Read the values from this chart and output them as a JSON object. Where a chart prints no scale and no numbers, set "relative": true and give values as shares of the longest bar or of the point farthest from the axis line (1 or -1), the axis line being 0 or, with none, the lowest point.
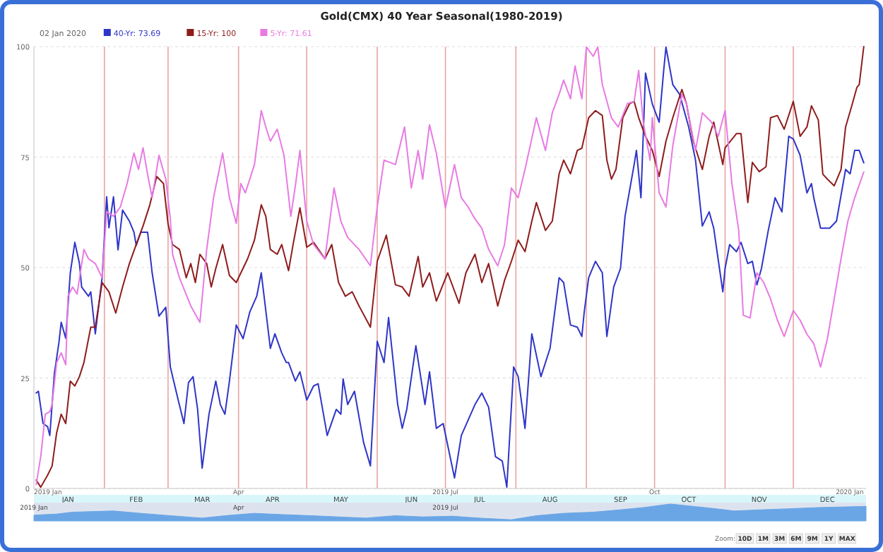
{
  "chart_data": [
    {
      "type": "line",
      "title": "Gold(CMX) 40 Year Seasonal(1980-2019)",
      "legend_title": "02 Jan 2020",
      "legend": "top left",
      "grid": "y",
      "xlim": [
        "2019-01-01",
        "2020-01-02"
      ],
      "xticks": [
        {
          "value": "2019-01-16",
          "label": "JAN"
        },
        {
          "value": "2019-02-15",
          "label": "FEB"
        },
        {
          "value": "2019-03-16",
          "label": "MAR"
        },
        {
          "value": "2019-04-16",
          "label": "APR"
        },
        {
          "value": "2019-05-16",
          "label": "MAY"
        },
        {
          "value": "2019-06-16",
          "label": "JUN"
        },
        {
          "value": "2019-07-16",
          "label": "JUL"
        },
        {
          "value": "2019-08-16",
          "label": "AUG"
        },
        {
          "value": "2019-09-16",
          "label": "SEP"
        },
        {
          "value": "2019-10-16",
          "label": "OCT"
        },
        {
          "value": "2019-11-16",
          "label": "NOV"
        },
        {
          "value": "2019-12-16",
          "label": "DEC"
        }
      ],
      "x2lim": [
        "2019-01-01",
        "2020-01-02"
      ],
      "x2ticks": [
        {
          "value": "2019-01-01",
          "label": "2019 Jan"
        },
        {
          "value": "2019-04-01",
          "label": "Apr"
        },
        {
          "value": "2019-07-01",
          "label": "2019 Jul"
        },
        {
          "value": "2019-10-01",
          "label": "Oct"
        },
        {
          "value": "2020-01-01",
          "label": "2020 Jan"
        }
      ],
      "ylim": [
        0,
        100
      ],
      "yticks": [
        0,
        25,
        50,
        75,
        100
      ],
      "ref_lines": [
        {
          "axis": "x",
          "value": "2019-02-01",
          "color": "#e8a4a4"
        },
        {
          "axis": "x",
          "value": "2019-03-01",
          "color": "#e8a4a4"
        },
        {
          "axis": "x",
          "value": "2019-04-01",
          "color": "#e8a4a4"
        },
        {
          "axis": "x",
          "value": "2019-05-01",
          "color": "#e8a4a4"
        },
        {
          "axis": "x",
          "value": "2019-06-01",
          "color": "#e8a4a4"
        },
        {
          "axis": "x",
          "value": "2019-07-01",
          "color": "#e8a4a4"
        },
        {
          "axis": "x",
          "value": "2019-08-01",
          "color": "#e8a4a4"
        },
        {
          "axis": "x",
          "value": "2019-09-01",
          "color": "#e8a4a4"
        },
        {
          "axis": "x",
          "value": "2019-10-01",
          "color": "#e8a4a4"
        },
        {
          "axis": "x",
          "value": "2019-11-01",
          "color": "#e8a4a4"
        },
        {
          "axis": "x",
          "value": "2019-12-01",
          "color": "#e8a4a4"
        }
      ],
      "series": [
        {
          "name": "40-Yr: 73.69",
          "color": "#2f35c8",
          "x": [
            "2019-01-02",
            "2019-01-03",
            "2019-01-05",
            "2019-01-07",
            "2019-01-08",
            "2019-01-10",
            "2019-01-12",
            "2019-01-13",
            "2019-01-15",
            "2019-01-17",
            "2019-01-19",
            "2019-01-21",
            "2019-01-22",
            "2019-01-25",
            "2019-01-26",
            "2019-01-28",
            "2019-01-31",
            "2019-02-02",
            "2019-02-03",
            "2019-02-05",
            "2019-02-07",
            "2019-02-09",
            "2019-02-12",
            "2019-02-14",
            "2019-02-15",
            "2019-02-17",
            "2019-02-20",
            "2019-02-22",
            "2019-02-25",
            "2019-02-28",
            "2019-03-02",
            "2019-03-05",
            "2019-03-08",
            "2019-03-10",
            "2019-03-12",
            "2019-03-14",
            "2019-03-16",
            "2019-03-19",
            "2019-03-22",
            "2019-03-24",
            "2019-03-26",
            "2019-03-28",
            "2019-03-31",
            "2019-04-03",
            "2019-04-06",
            "2019-04-09",
            "2019-04-11",
            "2019-04-15",
            "2019-04-17",
            "2019-04-20",
            "2019-04-22",
            "2019-04-23",
            "2019-04-26",
            "2019-04-28",
            "2019-05-01",
            "2019-05-04",
            "2019-05-06",
            "2019-05-10",
            "2019-05-14",
            "2019-05-16",
            "2019-05-17",
            "2019-05-19",
            "2019-05-22",
            "2019-05-26",
            "2019-05-29",
            "2019-06-01",
            "2019-06-04",
            "2019-06-06",
            "2019-06-10",
            "2019-06-12",
            "2019-06-14",
            "2019-06-18",
            "2019-06-22",
            "2019-06-24",
            "2019-06-27",
            "2019-06-30",
            "2019-07-05",
            "2019-07-08",
            "2019-07-14",
            "2019-07-17",
            "2019-07-20",
            "2019-07-23",
            "2019-07-26",
            "2019-07-28",
            "2019-07-31",
            "2019-08-02",
            "2019-08-05",
            "2019-08-08",
            "2019-08-12",
            "2019-08-16",
            "2019-08-20",
            "2019-08-22",
            "2019-08-25",
            "2019-08-28",
            "2019-08-30",
            "2019-08-31",
            "2019-09-02",
            "2019-09-05",
            "2019-09-08",
            "2019-09-10",
            "2019-09-13",
            "2019-09-16",
            "2019-09-18",
            "2019-09-22",
            "2019-09-23",
            "2019-09-25",
            "2019-09-27",
            "2019-09-30",
            "2019-10-03",
            "2019-10-05",
            "2019-10-06",
            "2019-10-09",
            "2019-10-12",
            "2019-10-16",
            "2019-10-19",
            "2019-10-22",
            "2019-10-25",
            "2019-10-27",
            "2019-10-31",
            "2019-11-01",
            "2019-11-03",
            "2019-11-06",
            "2019-11-08",
            "2019-11-11",
            "2019-11-13",
            "2019-11-15",
            "2019-11-17",
            "2019-11-20",
            "2019-11-23",
            "2019-11-26",
            "2019-11-29",
            "2019-12-01",
            "2019-12-04",
            "2019-12-07",
            "2019-12-09",
            "2019-12-10",
            "2019-12-13",
            "2019-12-17",
            "2019-12-20",
            "2019-12-24",
            "2019-12-26",
            "2019-12-28",
            "2019-12-30",
            "2020-01-01"
          ],
          "values": [
            21.6,
            22,
            14.7,
            14,
            12,
            26,
            33,
            37.6,
            34,
            48.8,
            55.7,
            51,
            45.6,
            43.5,
            44.5,
            35,
            47.7,
            66,
            59,
            66,
            54,
            63,
            60.5,
            58,
            55,
            58,
            58,
            48.8,
            39,
            41,
            27.5,
            21,
            14.7,
            24,
            25.3,
            17.9,
            4.6,
            16.8,
            24.3,
            19,
            16.8,
            24.3,
            37,
            33.9,
            40,
            43.5,
            48.8,
            31.7,
            35,
            30.7,
            28.5,
            28.5,
            24.3,
            26.4,
            20,
            23.2,
            23.7,
            12,
            17.9,
            16.8,
            24.8,
            19,
            22,
            10.4,
            5.1,
            33.3,
            28.5,
            38.7,
            19,
            13.6,
            17.9,
            32.3,
            19,
            26.4,
            13.6,
            14.7,
            2.4,
            12,
            19,
            21.6,
            18.4,
            7.2,
            6.2,
            0.3,
            27.5,
            25.3,
            13.6,
            35,
            25.3,
            31.7,
            47.7,
            46.6,
            37,
            36.5,
            34.4,
            39.7,
            47.7,
            51.4,
            48.8,
            34.4,
            45.6,
            49.8,
            61.6,
            73.3,
            76.5,
            65.8,
            94,
            87,
            82.9,
            94.6,
            99.9,
            91.4,
            89.2,
            81.8,
            74.3,
            59.4,
            62.6,
            58.9,
            44.5,
            49.8,
            55.2,
            53.6,
            55.7,
            50.9,
            51.4,
            46.1,
            49.8,
            58.4,
            65.8,
            62.6,
            79.7,
            79.1,
            75.4,
            66.9,
            69,
            65.8,
            58.9,
            58.9,
            60.5,
            72.2,
            71.2,
            76.5,
            76.5,
            73.7
          ]
        },
        {
          "name": "15-Yr: 100",
          "color": "#8e1c1c",
          "x": [
            "2019-01-02",
            "2019-01-04",
            "2019-01-07",
            "2019-01-09",
            "2019-01-11",
            "2019-01-13",
            "2019-01-15",
            "2019-01-17",
            "2019-01-19",
            "2019-01-21",
            "2019-01-23",
            "2019-01-26",
            "2019-01-28",
            "2019-01-31",
            "2019-02-03",
            "2019-02-06",
            "2019-02-09",
            "2019-02-12",
            "2019-02-15",
            "2019-02-18",
            "2019-02-21",
            "2019-02-24",
            "2019-02-27",
            "2019-03-01",
            "2019-03-03",
            "2019-03-06",
            "2019-03-09",
            "2019-03-11",
            "2019-03-13",
            "2019-03-15",
            "2019-03-18",
            "2019-03-20",
            "2019-03-22",
            "2019-03-25",
            "2019-03-28",
            "2019-03-31",
            "2019-04-05",
            "2019-04-08",
            "2019-04-11",
            "2019-04-13",
            "2019-04-15",
            "2019-04-18",
            "2019-04-20",
            "2019-04-23",
            "2019-04-25",
            "2019-04-28",
            "2019-05-01",
            "2019-05-04",
            "2019-05-09",
            "2019-05-12",
            "2019-05-15",
            "2019-05-18",
            "2019-05-21",
            "2019-05-24",
            "2019-05-29",
            "2019-06-01",
            "2019-06-05",
            "2019-06-09",
            "2019-06-12",
            "2019-06-15",
            "2019-06-19",
            "2019-06-21",
            "2019-06-24",
            "2019-06-27",
            "2019-07-02",
            "2019-07-07",
            "2019-07-10",
            "2019-07-14",
            "2019-07-17",
            "2019-07-20",
            "2019-07-24",
            "2019-07-27",
            "2019-07-30",
            "2019-08-02",
            "2019-08-05",
            "2019-08-08",
            "2019-08-10",
            "2019-08-14",
            "2019-08-17",
            "2019-08-20",
            "2019-08-22",
            "2019-08-25",
            "2019-08-28",
            "2019-08-30",
            "2019-09-02",
            "2019-09-05",
            "2019-09-08",
            "2019-09-10",
            "2019-09-12",
            "2019-09-14",
            "2019-09-17",
            "2019-09-20",
            "2019-09-22",
            "2019-09-24",
            "2019-09-27",
            "2019-09-30",
            "2019-10-03",
            "2019-10-06",
            "2019-10-09",
            "2019-10-13",
            "2019-10-15",
            "2019-10-18",
            "2019-10-22",
            "2019-10-25",
            "2019-10-27",
            "2019-10-31",
            "2019-11-01",
            "2019-11-06",
            "2019-11-08",
            "2019-11-11",
            "2019-11-13",
            "2019-11-16",
            "2019-11-19",
            "2019-11-21",
            "2019-11-24",
            "2019-11-27",
            "2019-12-01",
            "2019-12-04",
            "2019-12-07",
            "2019-12-09",
            "2019-12-12",
            "2019-12-14",
            "2019-12-16",
            "2019-12-19",
            "2019-12-22",
            "2019-12-24",
            "2019-12-27",
            "2019-12-29",
            "2019-12-30",
            "2020-01-01"
          ],
          "values": [
            1.9,
            0.3,
            3,
            5.1,
            12.6,
            16.8,
            14.7,
            24.3,
            23.2,
            25.3,
            28.5,
            36.5,
            36.5,
            46.6,
            44.5,
            39.7,
            45.6,
            50.9,
            55.2,
            59.4,
            64.2,
            70.6,
            69,
            59.9,
            55.2,
            54.1,
            47.7,
            50.9,
            46.6,
            53,
            50.9,
            45.6,
            49.8,
            55.2,
            48.2,
            46.6,
            52,
            56.2,
            64.2,
            61.6,
            54.1,
            53,
            55.2,
            49.3,
            55.2,
            63.5,
            54.6,
            55.7,
            52,
            55.2,
            46.6,
            43.5,
            44.5,
            41.3,
            36.5,
            51.4,
            57.3,
            46.1,
            45.6,
            43.5,
            52.5,
            45.6,
            48.8,
            42.4,
            48.8,
            41.9,
            48.8,
            53,
            46.6,
            50.9,
            41.3,
            47.1,
            51.4,
            56.2,
            53.6,
            60.5,
            64.7,
            58.4,
            60.5,
            71.2,
            74.3,
            71.2,
            76.5,
            77,
            83.9,
            85.5,
            84.4,
            74.3,
            70,
            72.2,
            83.9,
            87.1,
            87.6,
            83.9,
            79.7,
            76.5,
            70.6,
            78.6,
            83.9,
            90.3,
            87.1,
            78.6,
            72.2,
            79.7,
            82.9,
            73.3,
            77.1,
            80.3,
            80.3,
            64.7,
            73.8,
            71.7,
            72.8,
            83.9,
            84.4,
            81.3,
            87.6,
            79.7,
            81.8,
            86.6,
            83.4,
            71.1,
            70,
            68.5,
            72.2,
            81.8,
            87.1,
            90.8,
            91.4,
            100
          ]
        },
        {
          "name": "5-Yr: 71.61",
          "color": "#e87ae4",
          "x": [
            "2019-01-02",
            "2019-01-04",
            "2019-01-06",
            "2019-01-08",
            "2019-01-09",
            "2019-01-11",
            "2019-01-13",
            "2019-01-15",
            "2019-01-16",
            "2019-01-18",
            "2019-01-20",
            "2019-01-23",
            "2019-01-25",
            "2019-01-28",
            "2019-01-31",
            "2019-02-02",
            "2019-02-05",
            "2019-02-08",
            "2019-02-11",
            "2019-02-14",
            "2019-02-16",
            "2019-02-18",
            "2019-02-20",
            "2019-02-22",
            "2019-02-25",
            "2019-02-28",
            "2019-03-02",
            "2019-03-03",
            "2019-03-06",
            "2019-03-11",
            "2019-03-15",
            "2019-03-18",
            "2019-03-21",
            "2019-03-25",
            "2019-03-28",
            "2019-03-31",
            "2019-04-02",
            "2019-04-04",
            "2019-04-08",
            "2019-04-11",
            "2019-04-13",
            "2019-04-15",
            "2019-04-18",
            "2019-04-21",
            "2019-04-24",
            "2019-04-26",
            "2019-04-28",
            "2019-05-01",
            "2019-05-04",
            "2019-05-09",
            "2019-05-13",
            "2019-05-16",
            "2019-05-19",
            "2019-05-24",
            "2019-05-29",
            "2019-06-01",
            "2019-06-04",
            "2019-06-09",
            "2019-06-13",
            "2019-06-16",
            "2019-06-19",
            "2019-06-21",
            "2019-06-24",
            "2019-06-27",
            "2019-07-01",
            "2019-07-05",
            "2019-07-08",
            "2019-07-11",
            "2019-07-14",
            "2019-07-17",
            "2019-07-20",
            "2019-07-24",
            "2019-07-27",
            "2019-07-30",
            "2019-08-02",
            "2019-08-05",
            "2019-08-10",
            "2019-08-14",
            "2019-08-17",
            "2019-08-20",
            "2019-08-22",
            "2019-08-25",
            "2019-08-27",
            "2019-08-30",
            "2019-09-01",
            "2019-09-04",
            "2019-09-06",
            "2019-09-08",
            "2019-09-12",
            "2019-09-15",
            "2019-09-19",
            "2019-09-22",
            "2019-09-24",
            "2019-09-26",
            "2019-09-29",
            "2019-09-30",
            "2019-10-03",
            "2019-10-06",
            "2019-10-09",
            "2019-10-13",
            "2019-10-15",
            "2019-10-19",
            "2019-10-22",
            "2019-10-26",
            "2019-10-29",
            "2019-11-01",
            "2019-11-04",
            "2019-11-07",
            "2019-11-09",
            "2019-11-12",
            "2019-11-15",
            "2019-11-18",
            "2019-11-21",
            "2019-11-24",
            "2019-11-27",
            "2019-12-01",
            "2019-12-04",
            "2019-12-07",
            "2019-12-10",
            "2019-12-13",
            "2019-12-16",
            "2019-12-19",
            "2019-12-22",
            "2019-12-25",
            "2019-12-28",
            "2020-01-01"
          ],
          "values": [
            0.9,
            7.2,
            16.8,
            17.4,
            19,
            28.5,
            30.7,
            28,
            43.5,
            45.6,
            44,
            54.1,
            52,
            50.9,
            47.7,
            62.6,
            61.6,
            63.7,
            69,
            75.9,
            72.2,
            77.1,
            71.1,
            65.8,
            75.4,
            70,
            61,
            53,
            47.7,
            41.3,
            37.6,
            54.1,
            65.8,
            75.9,
            65.8,
            60,
            69,
            66.9,
            73.3,
            85.5,
            81.8,
            78.6,
            81.3,
            75.4,
            61.6,
            68.5,
            76.5,
            60.5,
            55.2,
            51.9,
            68,
            60.5,
            56.8,
            54.1,
            50.4,
            63.7,
            74.3,
            73.3,
            81.8,
            68,
            76.5,
            70,
            82.3,
            75.9,
            63.5,
            73.3,
            65.8,
            63.7,
            61,
            58.9,
            54.1,
            50.4,
            55.2,
            68,
            65.8,
            72.2,
            83.9,
            76.5,
            85,
            89.2,
            92.4,
            88.2,
            95.6,
            88.2,
            99.9,
            97.8,
            99.9,
            91.4,
            83.9,
            81.8,
            87.1,
            87.6,
            94.6,
            82.9,
            74.3,
            83.9,
            66.9,
            63.7,
            77.6,
            89.2,
            87.1,
            76.5,
            85,
            82.9,
            79.7,
            85.5,
            69,
            58.4,
            39.2,
            38.6,
            48.8,
            46.6,
            42.9,
            38.1,
            34.4,
            40.3,
            38.1,
            34.9,
            32.8,
            27.5,
            33.9,
            42.9,
            52,
            60.5,
            65.8,
            71.6
          ]
        }
      ]
    },
    {
      "type": "area",
      "relative": true,
      "color": "#6aa6e6",
      "tick_labels": "x",
      "xlim": [
        "2019-01-01",
        "2020-01-02"
      ],
      "xticks": [
        {
          "value": "2019-01-01",
          "label": "2019 Jan"
        },
        {
          "value": "2019-04-01",
          "label": "Apr"
        },
        {
          "value": "2019-07-01",
          "label": "2019 Jul"
        }
      ],
      "x": [
        "2019-01-01",
        "2019-01-11",
        "2019-01-18",
        "2019-02-05",
        "2019-02-17",
        "2019-03-02",
        "2019-03-16",
        "2019-03-26",
        "2019-04-08",
        "2019-04-20",
        "2019-05-03",
        "2019-05-15",
        "2019-05-27",
        "2019-06-09",
        "2019-06-21",
        "2019-07-04",
        "2019-07-16",
        "2019-07-30",
        "2019-08-10",
        "2019-08-22",
        "2019-09-04",
        "2019-09-16",
        "2019-09-26",
        "2019-10-08",
        "2019-10-18",
        "2019-10-28",
        "2019-11-05",
        "2019-11-17",
        "2019-11-29",
        "2019-12-12",
        "2019-12-24",
        "2020-01-02"
      ],
      "values": [
        0.34,
        0.41,
        0.52,
        0.59,
        0.45,
        0.31,
        0.17,
        0.31,
        0.45,
        0.38,
        0.31,
        0.24,
        0.17,
        0.31,
        0.24,
        0.28,
        0.17,
        0.07,
        0.31,
        0.45,
        0.52,
        0.66,
        0.79,
        1,
        0.86,
        0.72,
        0.59,
        0.66,
        0.72,
        0.79,
        0.83,
        0.86
      ],
      "annotations": [
        "Zoom:",
        "10D",
        "1M",
        "3M",
        "6M",
        "9M",
        "1Y",
        "MAX"
      ]
    }
  ]
}
